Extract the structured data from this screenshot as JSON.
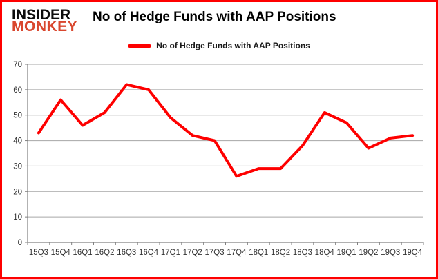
{
  "logo": {
    "line1": "INSIDER",
    "line2": "MONKEY"
  },
  "header": {
    "title": "No of Hedge Funds with AAP Positions"
  },
  "legend": {
    "label": "No of Hedge Funds with AAP Positions"
  },
  "colors": {
    "line_red": "#fe0000",
    "border_red": "#fe0000",
    "logo_red": "#d9472e",
    "gridline": "#a6a6a6",
    "axis": "#808080",
    "tick_label": "#333333"
  },
  "chart_data": {
    "type": "line",
    "title": "No of Hedge Funds with AAP Positions",
    "categories": [
      "15Q3",
      "15Q4",
      "16Q1",
      "16Q2",
      "16Q3",
      "16Q4",
      "17Q1",
      "17Q2",
      "17Q3",
      "17Q4",
      "18Q1",
      "18Q2",
      "18Q3",
      "18Q4",
      "19Q1",
      "19Q2",
      "19Q3",
      "19Q4"
    ],
    "series": [
      {
        "name": "No of Hedge Funds with AAP Positions",
        "values": [
          43,
          56,
          46,
          51,
          62,
          60,
          49,
          42,
          40,
          26,
          29,
          29,
          38,
          51,
          47,
          37,
          41,
          42
        ]
      }
    ],
    "xlabel": "",
    "ylabel": "",
    "ylim": [
      0,
      70
    ],
    "yticks": [
      0,
      10,
      20,
      30,
      40,
      50,
      60,
      70
    ],
    "grid": "horizontal",
    "legend_position": "top-center",
    "marker": "none"
  }
}
